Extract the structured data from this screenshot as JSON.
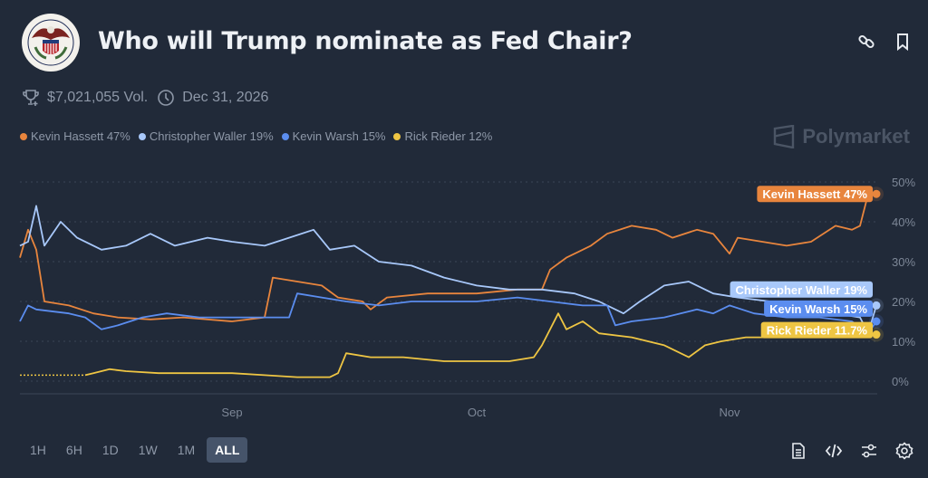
{
  "header": {
    "title": "Who will Trump nominate as Fed Chair?",
    "volume": "$7,021,055 Vol.",
    "end_date": "Dec 31, 2026",
    "logo_text": "Board of Governors of the Federal Reserve System",
    "icons": [
      "link-icon",
      "bookmark-icon"
    ]
  },
  "legend": [
    {
      "label": "Kevin Hassett 47%",
      "color": "#e8853d"
    },
    {
      "label": "Christopher Waller 19%",
      "color": "#a8c8fa"
    },
    {
      "label": "Kevin Warsh 15%",
      "color": "#5b8def"
    },
    {
      "label": "Rick Rieder 12%",
      "color": "#eec543"
    }
  ],
  "brand": "Polymarket",
  "chart_data": {
    "type": "line",
    "x_ticks": [
      "Sep",
      "Oct",
      "Nov"
    ],
    "y_ticks": [
      "0%",
      "10%",
      "20%",
      "30%",
      "40%",
      "50%"
    ],
    "ylim": [
      0,
      50
    ],
    "xlim": [
      "Aug 06",
      "Nov 19"
    ],
    "grid": "horizontal dotted",
    "series": [
      {
        "name": "Kevin Hassett",
        "color": "#e8853d",
        "end_label": "Kevin Hassett 47%",
        "points": [
          [
            "Aug 06",
            31
          ],
          [
            "Aug 07",
            38
          ],
          [
            "Aug 08",
            33
          ],
          [
            "Aug 09",
            20
          ],
          [
            "Aug 12",
            19
          ],
          [
            "Aug 15",
            17
          ],
          [
            "Aug 18",
            16
          ],
          [
            "Aug 22",
            15.5
          ],
          [
            "Aug 26",
            16
          ],
          [
            "Sep 01",
            15
          ],
          [
            "Sep 05",
            16
          ],
          [
            "Sep 06",
            26
          ],
          [
            "Sep 09",
            25
          ],
          [
            "Sep 12",
            24
          ],
          [
            "Sep 14",
            21
          ],
          [
            "Sep 17",
            20
          ],
          [
            "Sep 18",
            18
          ],
          [
            "Sep 20",
            21
          ],
          [
            "Sep 25",
            22
          ],
          [
            "Oct 01",
            22
          ],
          [
            "Oct 06",
            23
          ],
          [
            "Oct 09",
            23
          ],
          [
            "Oct 10",
            28
          ],
          [
            "Oct 12",
            31
          ],
          [
            "Oct 15",
            34
          ],
          [
            "Oct 17",
            37
          ],
          [
            "Oct 20",
            39
          ],
          [
            "Oct 23",
            38
          ],
          [
            "Oct 25",
            36
          ],
          [
            "Oct 28",
            38
          ],
          [
            "Oct 30",
            37
          ],
          [
            "Nov 01",
            32
          ],
          [
            "Nov 02",
            36
          ],
          [
            "Nov 05",
            35
          ],
          [
            "Nov 08",
            34
          ],
          [
            "Nov 11",
            35
          ],
          [
            "Nov 14",
            39
          ],
          [
            "Nov 16",
            38
          ],
          [
            "Nov 17",
            39
          ],
          [
            "Nov 18",
            47
          ],
          [
            "Nov 19",
            47
          ]
        ]
      },
      {
        "name": "Christopher Waller",
        "color": "#a8c8fa",
        "end_label": "Christopher Waller 19%",
        "points": [
          [
            "Aug 06",
            34
          ],
          [
            "Aug 07",
            35
          ],
          [
            "Aug 08",
            44
          ],
          [
            "Aug 09",
            34
          ],
          [
            "Aug 11",
            40
          ],
          [
            "Aug 13",
            36
          ],
          [
            "Aug 16",
            33
          ],
          [
            "Aug 19",
            34
          ],
          [
            "Aug 22",
            37
          ],
          [
            "Aug 25",
            34
          ],
          [
            "Aug 29",
            36
          ],
          [
            "Sep 01",
            35
          ],
          [
            "Sep 05",
            34
          ],
          [
            "Sep 08",
            36
          ],
          [
            "Sep 11",
            38
          ],
          [
            "Sep 13",
            33
          ],
          [
            "Sep 16",
            34
          ],
          [
            "Sep 19",
            30
          ],
          [
            "Sep 23",
            29
          ],
          [
            "Sep 27",
            26
          ],
          [
            "Oct 01",
            24
          ],
          [
            "Oct 05",
            23
          ],
          [
            "Oct 09",
            23
          ],
          [
            "Oct 13",
            22
          ],
          [
            "Oct 16",
            20
          ],
          [
            "Oct 19",
            17
          ],
          [
            "Oct 21",
            20
          ],
          [
            "Oct 24",
            24
          ],
          [
            "Oct 27",
            25
          ],
          [
            "Oct 30",
            22
          ],
          [
            "Nov 02",
            21
          ],
          [
            "Nov 06",
            20
          ],
          [
            "Nov 10",
            18
          ],
          [
            "Nov 14",
            17
          ],
          [
            "Nov 17",
            16
          ],
          [
            "Nov 18",
            12
          ],
          [
            "Nov 19",
            19
          ]
        ]
      },
      {
        "name": "Kevin Warsh",
        "color": "#5b8def",
        "end_label": "Kevin Warsh 15%",
        "points": [
          [
            "Aug 06",
            15
          ],
          [
            "Aug 07",
            19
          ],
          [
            "Aug 08",
            18
          ],
          [
            "Aug 12",
            17
          ],
          [
            "Aug 14",
            16
          ],
          [
            "Aug 16",
            13
          ],
          [
            "Aug 18",
            14
          ],
          [
            "Aug 21",
            16
          ],
          [
            "Aug 24",
            17
          ],
          [
            "Aug 28",
            16
          ],
          [
            "Sep 01",
            16
          ],
          [
            "Sep 06",
            16
          ],
          [
            "Sep 08",
            16
          ],
          [
            "Sep 09",
            22
          ],
          [
            "Sep 12",
            21
          ],
          [
            "Sep 15",
            20
          ],
          [
            "Sep 19",
            19
          ],
          [
            "Sep 23",
            20
          ],
          [
            "Oct 01",
            20
          ],
          [
            "Oct 06",
            21
          ],
          [
            "Oct 10",
            20
          ],
          [
            "Oct 14",
            19
          ],
          [
            "Oct 17",
            19
          ],
          [
            "Oct 18",
            14
          ],
          [
            "Oct 20",
            15
          ],
          [
            "Oct 24",
            16
          ],
          [
            "Oct 28",
            18
          ],
          [
            "Oct 30",
            17
          ],
          [
            "Nov 01",
            19
          ],
          [
            "Nov 04",
            17
          ],
          [
            "Nov 08",
            16
          ],
          [
            "Nov 12",
            16
          ],
          [
            "Nov 16",
            15
          ],
          [
            "Nov 18",
            12
          ],
          [
            "Nov 19",
            15
          ]
        ]
      },
      {
        "name": "Rick Rieder",
        "color": "#eec543",
        "end_label": "Rick Rieder 11.7%",
        "points": [
          [
            "Aug 06",
            1.5
          ],
          [
            "Aug 14",
            1.5
          ],
          [
            "Aug 15",
            2
          ],
          [
            "Aug 17",
            3
          ],
          [
            "Aug 19",
            2.5
          ],
          [
            "Aug 23",
            2
          ],
          [
            "Aug 28",
            2
          ],
          [
            "Sep 01",
            2
          ],
          [
            "Sep 05",
            1.5
          ],
          [
            "Sep 09",
            1
          ],
          [
            "Sep 13",
            1
          ],
          [
            "Sep 14",
            2
          ],
          [
            "Sep 15",
            7
          ],
          [
            "Sep 18",
            6
          ],
          [
            "Sep 22",
            6
          ],
          [
            "Sep 27",
            5
          ],
          [
            "Oct 01",
            5
          ],
          [
            "Oct 05",
            5
          ],
          [
            "Oct 08",
            6
          ],
          [
            "Oct 09",
            9
          ],
          [
            "Oct 11",
            17
          ],
          [
            "Oct 12",
            13
          ],
          [
            "Oct 14",
            15
          ],
          [
            "Oct 16",
            12
          ],
          [
            "Oct 20",
            11
          ],
          [
            "Oct 24",
            9
          ],
          [
            "Oct 27",
            6
          ],
          [
            "Oct 29",
            9
          ],
          [
            "Oct 31",
            10
          ],
          [
            "Nov 03",
            11
          ],
          [
            "Nov 07",
            11
          ],
          [
            "Nov 11",
            11.5
          ],
          [
            "Nov 15",
            11.7
          ],
          [
            "Nov 19",
            11.7
          ]
        ]
      }
    ]
  },
  "ranges": [
    "1H",
    "6H",
    "1D",
    "1W",
    "1M",
    "ALL"
  ],
  "active_range": "ALL",
  "tools": [
    "document-icon",
    "code-icon",
    "sliders-icon",
    "settings-icon"
  ]
}
